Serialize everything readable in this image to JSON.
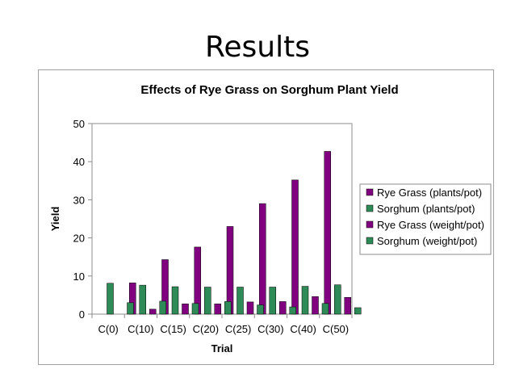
{
  "slide": {
    "title": "Results"
  },
  "chart_data": {
    "type": "bar",
    "title": "Effects of Rye Grass on Sorghum Plant Yield",
    "xlabel": "Trial",
    "ylabel": "Yield",
    "categories": [
      "C(0)",
      "C(10)",
      "C(15)",
      "C(20)",
      "C(25)",
      "C(30)",
      "C(40)",
      "C(50)"
    ],
    "ylim": [
      0,
      50
    ],
    "yticks": [
      0,
      10,
      20,
      30,
      40,
      50
    ],
    "grid": false,
    "legend_position": "right",
    "series": [
      {
        "name": "Rye Grass (plants/pot)",
        "color": "#800080",
        "values": [
          0,
          8.2,
          14.3,
          17.6,
          23,
          29,
          35.2,
          42.7
        ]
      },
      {
        "name": "Sorghum (plants/pot)",
        "color": "#2e8b57",
        "values": [
          8.1,
          7.6,
          7.2,
          7.1,
          7.1,
          7.1,
          7.3,
          7.7
        ]
      },
      {
        "name": "Rye Grass (weight/pot)",
        "color": "#800080",
        "values": [
          0,
          1.3,
          2.7,
          2.7,
          3.2,
          3.3,
          4.6,
          4.4
        ]
      },
      {
        "name": "Sorghum (weight/pot)",
        "color": "#2e8b57",
        "values": [
          3,
          3.4,
          2.8,
          3.3,
          2.4,
          1.9,
          2.8,
          1.7
        ]
      }
    ]
  }
}
